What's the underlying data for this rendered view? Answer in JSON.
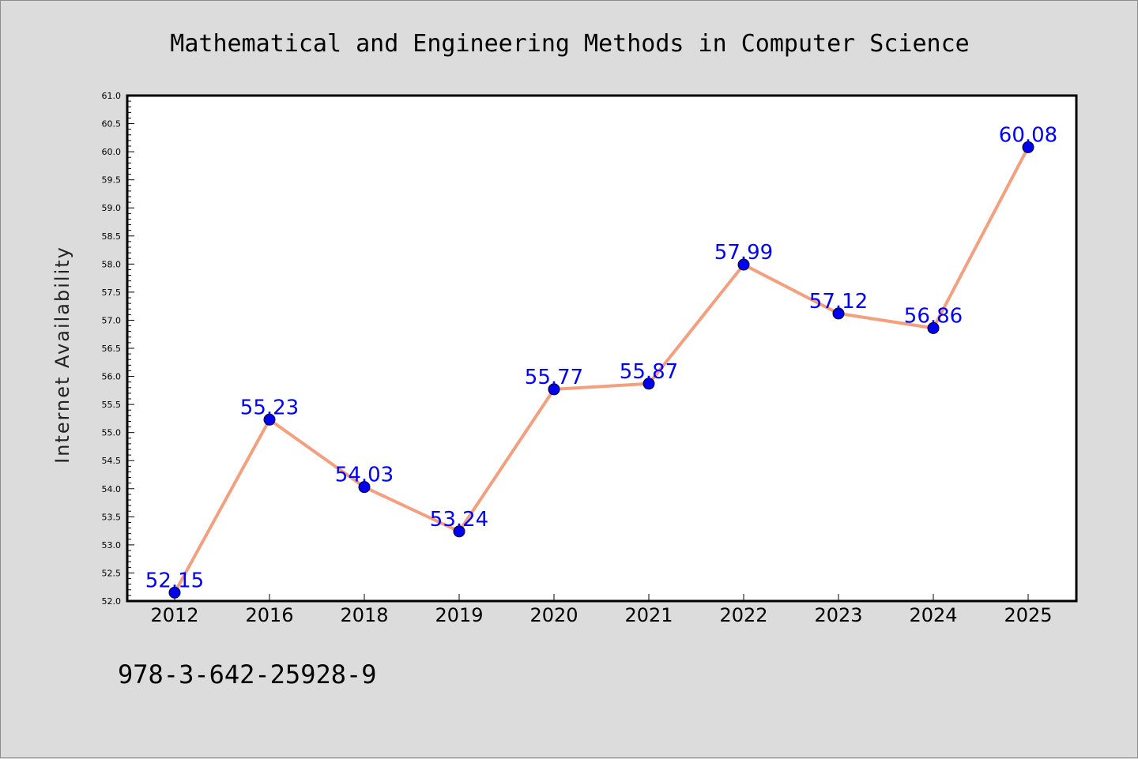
{
  "chart_data": {
    "type": "line",
    "title": "Mathematical and Engineering Methods in Computer Science",
    "xlabel": "",
    "ylabel": "Internet Availability",
    "categories": [
      "2012",
      "2016",
      "2018",
      "2019",
      "2020",
      "2021",
      "2022",
      "2023",
      "2024",
      "2025"
    ],
    "series": [
      {
        "values": [
          52.15,
          55.23,
          54.03,
          53.24,
          55.77,
          55.87,
          57.99,
          57.12,
          56.86,
          60.08
        ],
        "labels": [
          "52.15",
          "55.23",
          "54.03",
          "53.24",
          "55.77",
          "55.87",
          "57.99",
          "57.12",
          "56.86",
          "60.08"
        ],
        "line_color": "#f4a07f",
        "marker_color": "#0000ee",
        "label_color": "#0000ff"
      }
    ],
    "ylim": [
      52.0,
      61.0
    ],
    "yticks": [
      "52.0",
      "52.5",
      "53.0",
      "53.5",
      "54.0",
      "54.5",
      "55.0",
      "55.5",
      "56.0",
      "56.5",
      "57.0",
      "57.5",
      "58.0",
      "58.5",
      "59.0",
      "59.5",
      "60.0",
      "60.5",
      "61.0"
    ],
    "grid": false,
    "legend": "none"
  },
  "footer": {
    "isbn": "978-3-642-25928-9"
  },
  "colors": {
    "background": "#dcdcdc",
    "plot_background": "#ffffff",
    "axis": "#000000"
  }
}
